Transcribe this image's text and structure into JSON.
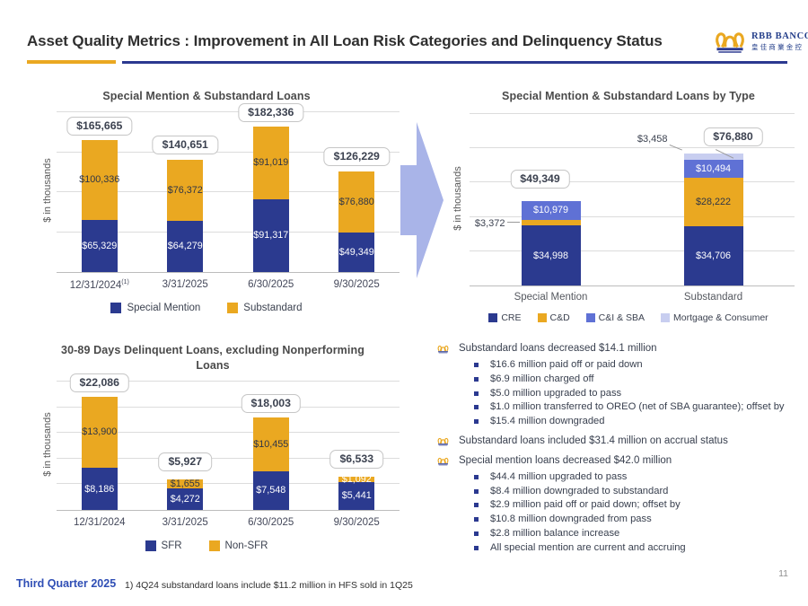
{
  "header": {
    "title": "Asset Quality Metrics : Improvement in All Loan Risk Categories and Delinquency Status",
    "logo": {
      "brand": "RBB BANCORP",
      "brand_cn": "皇佳商業金控"
    }
  },
  "colors": {
    "navy": "#2B3A8F",
    "gold": "#EAA821",
    "periwinkle": "#5F71D5",
    "lavender": "#C8CEF0",
    "arrow": "#A9B4E8",
    "header_rule_blue": "#2B3990",
    "header_rule_gold": "#EAA821"
  },
  "chart_data": [
    {
      "id": "special-mention-substandard-loans",
      "type": "bar",
      "stacked": true,
      "title": "Special Mention & Substandard  Loans",
      "ylabel": "$ in thousands",
      "ylim": [
        0,
        200000
      ],
      "grid_step": 50000,
      "grid": true,
      "legend_position": "bottom",
      "categories": [
        "12/31/2024",
        "3/31/2025",
        "6/30/2025",
        "9/30/2025"
      ],
      "category_sups": [
        "(1)",
        "",
        "",
        ""
      ],
      "series": [
        {
          "name": "Special Mention",
          "color": "#2B3A8F",
          "values": [
            65329,
            64279,
            91317,
            49349
          ],
          "label_colors": [
            "#FFFFFF",
            "#FFFFFF",
            "#FFFFFF",
            "#FFFFFF"
          ]
        },
        {
          "name": "Substandard",
          "color": "#EAA821",
          "values": [
            100336,
            76372,
            91019,
            76880
          ],
          "label_colors": [
            "#2F3546",
            "#2F3546",
            "#2F3546",
            "#2F3546"
          ]
        }
      ],
      "totals": [
        165665,
        140651,
        182336,
        126229
      ]
    },
    {
      "id": "special-mention-substandard-loans-by-type",
      "type": "bar",
      "stacked": true,
      "title": "Special Mention & Substandard  Loans by Type",
      "ylabel": "$ in thousands",
      "ylim": [
        0,
        100000
      ],
      "grid_step": 20000,
      "grid": true,
      "legend_position": "bottom",
      "categories": [
        "Special Mention",
        "Substandard"
      ],
      "series": [
        {
          "name": "CRE",
          "color": "#2B3A8F",
          "values": [
            34998,
            34706
          ],
          "label_colors": [
            "#FFFFFF",
            "#FFFFFF"
          ]
        },
        {
          "name": "C&D",
          "color": "#EAA821",
          "values": [
            3372,
            28222
          ],
          "label_pos": [
            "out",
            "in"
          ],
          "label_colors": [
            "#3C4250",
            "#2F3546"
          ]
        },
        {
          "name": "C&I & SBA",
          "color": "#5F71D5",
          "values": [
            10979,
            10494
          ],
          "label_colors": [
            "#FFFFFF",
            "#FFFFFF"
          ]
        },
        {
          "name": "Mortgage & Consumer",
          "color": "#C8CEF0",
          "values": [
            0,
            3458
          ],
          "label_pos": [
            "none",
            "out-up"
          ],
          "label_colors": [
            "#3C4250",
            "#3C4250"
          ]
        }
      ],
      "totals": [
        49349,
        76880
      ]
    },
    {
      "id": "30-89-days-delinquent-loans",
      "type": "bar",
      "stacked": true,
      "title": "30-89 Days Delinquent Loans, excluding Nonperforming Loans",
      "ylabel": "$ in thousands",
      "ylim": [
        0,
        25000
      ],
      "grid_step": 5000,
      "grid": true,
      "legend_position": "bottom",
      "categories": [
        "12/31/2024",
        "3/31/2025",
        "6/30/2025",
        "9/30/2025"
      ],
      "series": [
        {
          "name": "SFR",
          "color": "#2B3A8F",
          "values": [
            8186,
            4272,
            7548,
            5441
          ],
          "label_colors": [
            "#FFFFFF",
            "#FFFFFF",
            "#FFFFFF",
            "#FFFFFF"
          ]
        },
        {
          "name": "Non-SFR",
          "color": "#EAA821",
          "values": [
            13900,
            1655,
            10455,
            1092
          ],
          "label_colors": [
            "#2F3546",
            "#2F3546",
            "#2F3546",
            "#FFFFFF"
          ]
        }
      ],
      "totals": [
        22086,
        5927,
        18003,
        6533
      ]
    }
  ],
  "bullets": [
    {
      "text": "Substandard loans decreased $14.1 million",
      "subs": [
        "$16.6 million paid off or paid down",
        "$6.9 million charged off",
        "$5.0 million upgraded to pass",
        "$1.0 million transferred to OREO (net of SBA guarantee); offset by",
        "$15.4 million downgraded"
      ]
    },
    {
      "text": "Substandard loans included $31.4 million on accrual status",
      "subs": []
    },
    {
      "text": "Special mention loans decreased $42.0 million",
      "subs": [
        "$44.4 million upgraded to pass",
        "$8.4 million downgraded to substandard",
        "$2.9 million paid off or paid down; offset by",
        "$10.8 million downgraded from pass",
        "$2.8 million balance increase",
        "All special mention are current and accruing"
      ]
    }
  ],
  "footer": {
    "left": "Third Quarter 2025",
    "footnote": "1) 4Q24 substandard loans include $11.2 million in HFS sold in 1Q25",
    "page": "11"
  }
}
